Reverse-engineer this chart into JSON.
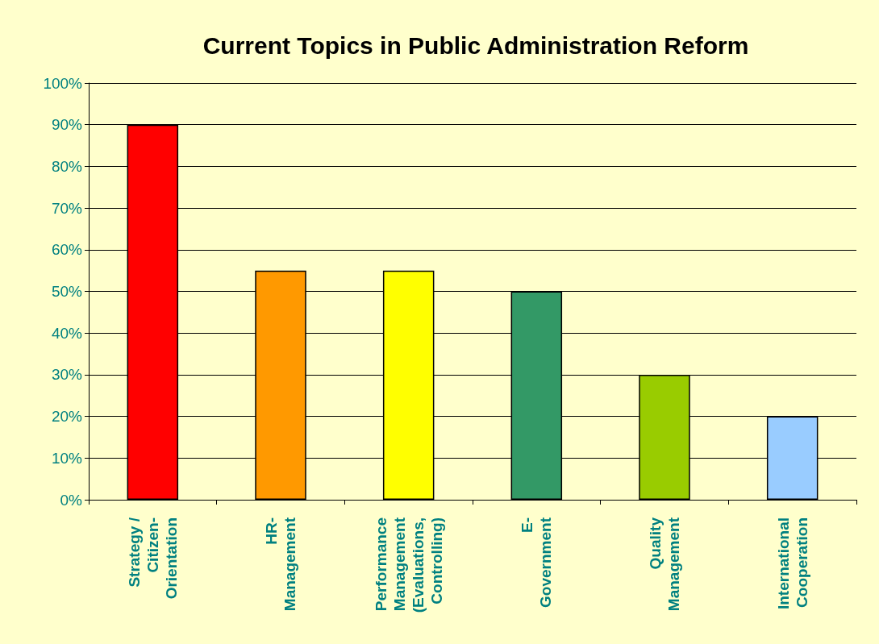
{
  "chart_data": {
    "type": "bar",
    "title": "Current Topics in Public Administration Reform",
    "categories": [
      "Strategy /\nCitizen-\nOrientation",
      "HR-\nManagement",
      "Performance\nManagement\n(Evaluations,\nControlling)",
      "E-\nGovernment",
      "Quality\nManagement",
      "International\nCooperation"
    ],
    "values": [
      90,
      55,
      55,
      50,
      30,
      20
    ],
    "colors": [
      "#ff0000",
      "#ff9900",
      "#ffff00",
      "#339966",
      "#99cc00",
      "#99ccff"
    ],
    "ylim": [
      0,
      100
    ],
    "yticks": [
      {
        "value": 0,
        "label": "0%"
      },
      {
        "value": 10,
        "label": "10%"
      },
      {
        "value": 20,
        "label": "20%"
      },
      {
        "value": 30,
        "label": "30%"
      },
      {
        "value": 40,
        "label": "40%"
      },
      {
        "value": 50,
        "label": "50%"
      },
      {
        "value": 60,
        "label": "60%"
      },
      {
        "value": 70,
        "label": "70%"
      },
      {
        "value": 80,
        "label": "80%"
      },
      {
        "value": 90,
        "label": "90%"
      },
      {
        "value": 100,
        "label": "100%"
      }
    ],
    "grid": "y"
  }
}
